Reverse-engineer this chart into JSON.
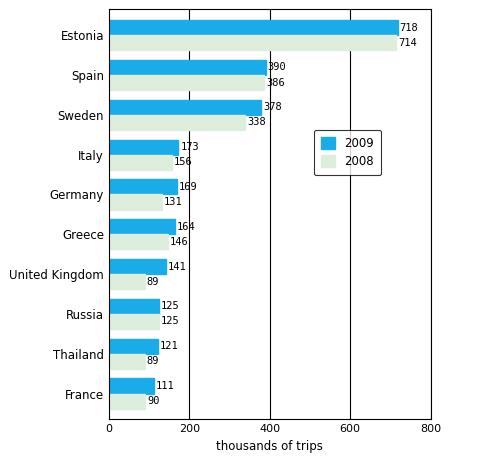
{
  "countries": [
    "Estonia",
    "Spain",
    "Sweden",
    "Italy",
    "Germany",
    "Greece",
    "United Kingdom",
    "Russia",
    "Thailand",
    "France"
  ],
  "values_2009": [
    718,
    390,
    378,
    173,
    169,
    164,
    141,
    125,
    121,
    111
  ],
  "values_2008": [
    714,
    386,
    338,
    156,
    131,
    146,
    89,
    125,
    89,
    90
  ],
  "color_2009": "#1AACE8",
  "color_2008": "#DDEEDD",
  "xlabel": "thousands of trips",
  "xlim": [
    0,
    800
  ],
  "xticks": [
    0,
    200,
    400,
    600,
    800
  ],
  "legend_labels": [
    "2009",
    "2008"
  ],
  "bar_height": 0.38,
  "value_fontsize": 7.5,
  "label_fontsize": 8.5,
  "tick_fontsize": 8,
  "xlabel_fontsize": 8.5
}
